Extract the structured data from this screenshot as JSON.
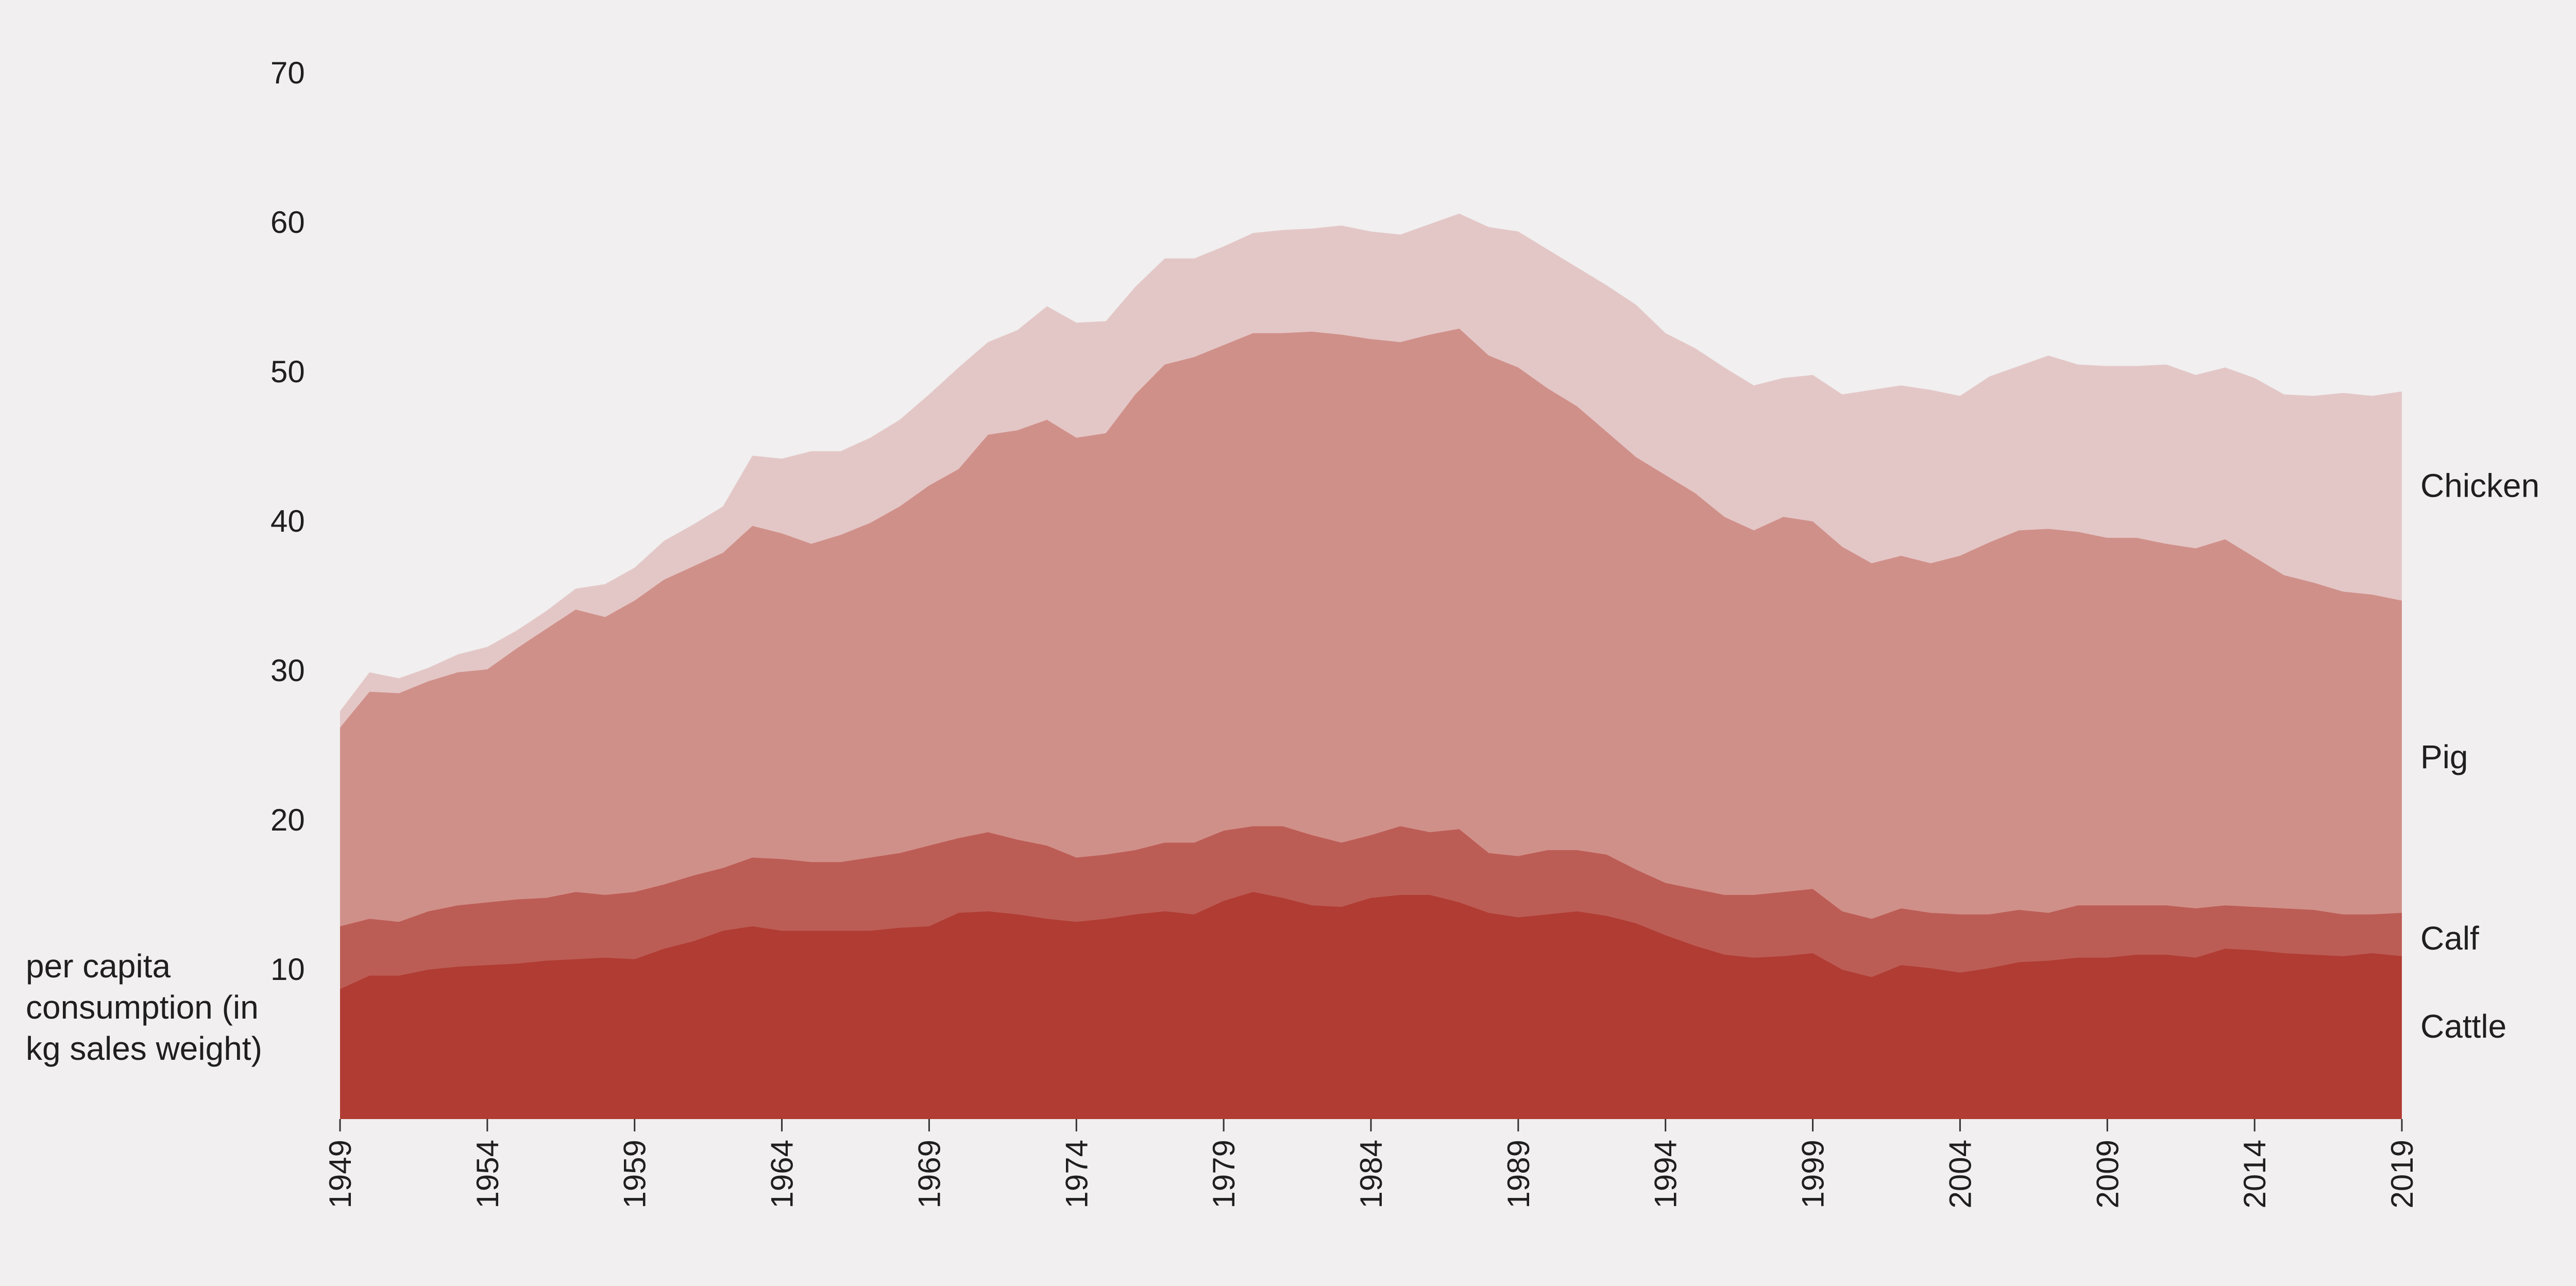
{
  "chart_data": {
    "type": "area",
    "stacked": true,
    "title": "",
    "xlabel": "",
    "ylabel": "per capita consumption (in kg sales weight)",
    "xlim": [
      1949,
      2019
    ],
    "ylim": [
      0,
      70
    ],
    "yticks": [
      10,
      20,
      30,
      40,
      50,
      60,
      70
    ],
    "xticks": [
      1949,
      1954,
      1959,
      1964,
      1969,
      1974,
      1979,
      1984,
      1989,
      1994,
      1999,
      2004,
      2009,
      2014,
      2019
    ],
    "grid": false,
    "legend": "series labels placed at right end of stacked areas",
    "x": [
      1949,
      1950,
      1951,
      1952,
      1953,
      1954,
      1955,
      1956,
      1957,
      1958,
      1959,
      1960,
      1961,
      1962,
      1963,
      1964,
      1965,
      1966,
      1967,
      1968,
      1969,
      1970,
      1971,
      1972,
      1973,
      1974,
      1975,
      1976,
      1977,
      1978,
      1979,
      1980,
      1981,
      1982,
      1983,
      1984,
      1985,
      1986,
      1987,
      1988,
      1989,
      1990,
      1991,
      1992,
      1993,
      1994,
      1995,
      1996,
      1997,
      1998,
      1999,
      2000,
      2001,
      2002,
      2003,
      2004,
      2005,
      2006,
      2007,
      2008,
      2009,
      2010,
      2011,
      2012,
      2013,
      2014,
      2015,
      2016,
      2017,
      2018,
      2019
    ],
    "series": [
      {
        "name": "Cattle",
        "color": "#b03c33",
        "values": [
          8.7,
          9.6,
          9.6,
          10.0,
          10.2,
          10.3,
          10.4,
          10.6,
          10.7,
          10.8,
          10.7,
          11.4,
          11.9,
          12.6,
          12.9,
          12.6,
          12.6,
          12.6,
          12.6,
          12.8,
          12.9,
          13.8,
          13.9,
          13.7,
          13.4,
          13.2,
          13.4,
          13.7,
          13.9,
          13.7,
          14.6,
          15.2,
          14.8,
          14.3,
          14.2,
          14.8,
          15.0,
          15.0,
          14.5,
          13.8,
          13.5,
          13.7,
          13.9,
          13.6,
          13.1,
          12.3,
          11.6,
          11.0,
          10.8,
          10.9,
          11.1,
          10.0,
          9.5,
          10.3,
          10.1,
          9.8,
          10.1,
          10.5,
          10.6,
          10.8,
          10.8,
          11.0,
          11.0,
          10.8,
          11.4,
          11.3,
          11.1,
          11.0,
          10.9,
          11.1,
          10.9
        ]
      },
      {
        "name": "Calf",
        "color": "#bc5d55",
        "values": [
          4.2,
          3.8,
          3.6,
          3.9,
          4.1,
          4.2,
          4.3,
          4.2,
          4.5,
          4.2,
          4.5,
          4.3,
          4.4,
          4.2,
          4.6,
          4.8,
          4.6,
          4.6,
          4.9,
          5.0,
          5.4,
          5.0,
          5.3,
          5.0,
          4.9,
          4.3,
          4.3,
          4.3,
          4.6,
          4.8,
          4.7,
          4.4,
          4.8,
          4.7,
          4.3,
          4.2,
          4.6,
          4.2,
          4.9,
          4.0,
          4.1,
          4.3,
          4.1,
          4.1,
          3.6,
          3.5,
          3.8,
          4.0,
          4.2,
          4.3,
          4.3,
          3.9,
          3.9,
          3.8,
          3.7,
          3.9,
          3.6,
          3.5,
          3.2,
          3.5,
          3.5,
          3.3,
          3.3,
          3.3,
          2.9,
          2.9,
          3.0,
          3.0,
          2.8,
          2.6,
          2.9
        ]
      },
      {
        "name": "Pig",
        "color": "#d0908a",
        "values": [
          13.3,
          15.2,
          15.3,
          15.4,
          15.6,
          15.6,
          16.8,
          18.0,
          18.9,
          18.6,
          19.5,
          20.4,
          20.7,
          21.1,
          22.2,
          21.8,
          21.3,
          21.9,
          22.4,
          23.2,
          24.1,
          24.7,
          26.6,
          27.4,
          28.5,
          28.1,
          28.2,
          30.5,
          32.0,
          32.5,
          32.5,
          33.0,
          33.0,
          33.7,
          34.0,
          33.2,
          32.4,
          33.3,
          33.5,
          33.3,
          32.7,
          30.9,
          29.7,
          28.3,
          27.6,
          27.3,
          26.5,
          25.3,
          24.4,
          25.1,
          24.6,
          24.4,
          23.8,
          23.6,
          23.4,
          24.0,
          24.9,
          25.4,
          25.7,
          25.0,
          24.6,
          24.6,
          24.2,
          24.1,
          24.5,
          23.4,
          22.3,
          21.9,
          21.6,
          21.4,
          20.9
        ]
      },
      {
        "name": "Chicken",
        "color": "#e3c7c6",
        "values": [
          1.1,
          1.3,
          1.0,
          0.9,
          1.2,
          1.5,
          1.2,
          1.2,
          1.4,
          2.2,
          2.2,
          2.6,
          2.8,
          3.1,
          4.7,
          5.0,
          6.2,
          5.6,
          5.7,
          5.8,
          6.1,
          6.8,
          6.2,
          6.7,
          7.6,
          7.7,
          7.5,
          7.2,
          7.1,
          6.6,
          6.6,
          6.7,
          6.9,
          6.9,
          7.3,
          7.2,
          7.2,
          7.4,
          7.7,
          8.6,
          9.1,
          9.3,
          9.3,
          9.8,
          10.2,
          9.5,
          9.7,
          10.0,
          9.7,
          9.3,
          9.8,
          10.2,
          11.6,
          11.4,
          11.6,
          10.7,
          11.1,
          11.0,
          11.6,
          11.2,
          11.5,
          11.5,
          12.0,
          11.6,
          11.5,
          12.0,
          12.1,
          12.5,
          13.3,
          13.3,
          14.0
        ]
      }
    ]
  }
}
